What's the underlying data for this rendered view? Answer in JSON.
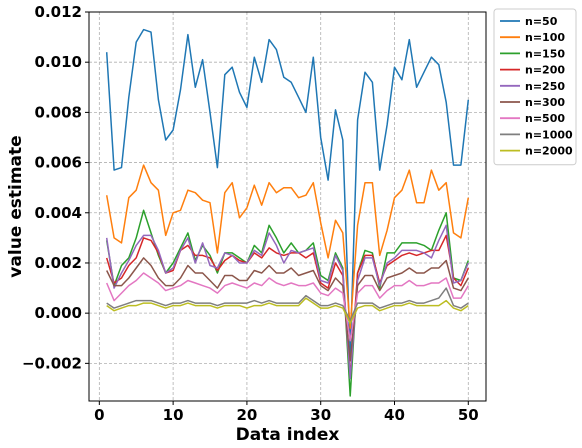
{
  "chart_data": {
    "type": "line",
    "xlabel": "Data index",
    "ylabel": "value estimate",
    "xlim": [
      -1.4,
      52.4
    ],
    "ylim": [
      -0.0035,
      0.012
    ],
    "xticks": [
      0,
      10,
      20,
      30,
      40,
      50
    ],
    "xtick_labels": [
      "0",
      "10",
      "20",
      "30",
      "40",
      "50"
    ],
    "yticks": [
      -0.002,
      0.0,
      0.002,
      0.004,
      0.006,
      0.008,
      0.01,
      0.012
    ],
    "ytick_labels": [
      "−0.002",
      "0.000",
      "0.002",
      "0.004",
      "0.006",
      "0.008",
      "0.010",
      "0.012"
    ],
    "grid": true,
    "legend_position": "outside-top-right",
    "x": [
      1,
      2,
      3,
      4,
      5,
      6,
      7,
      8,
      9,
      10,
      11,
      12,
      13,
      14,
      15,
      16,
      17,
      18,
      19,
      20,
      21,
      22,
      23,
      24,
      25,
      26,
      27,
      28,
      29,
      30,
      31,
      32,
      33,
      34,
      35,
      36,
      37,
      38,
      39,
      40,
      41,
      42,
      43,
      44,
      45,
      46,
      47,
      48,
      49,
      50
    ],
    "series": [
      {
        "name": "n=50",
        "color": "#1f77b4",
        "values": [
          0.0104,
          0.0057,
          0.0058,
          0.0086,
          0.0108,
          0.0113,
          0.0112,
          0.0085,
          0.0069,
          0.0073,
          0.0089,
          0.0111,
          0.009,
          0.0101,
          0.008,
          0.0058,
          0.0095,
          0.0098,
          0.0088,
          0.0082,
          0.0102,
          0.0092,
          0.0109,
          0.0105,
          0.0094,
          0.0092,
          0.0086,
          0.008,
          0.0102,
          0.007,
          0.0053,
          0.0081,
          0.0069,
          -0.0016,
          0.0077,
          0.0096,
          0.0092,
          0.0057,
          0.0075,
          0.0098,
          0.0093,
          0.0109,
          0.009,
          0.0096,
          0.0102,
          0.0099,
          0.0084,
          0.0059,
          0.0059,
          0.0085
        ]
      },
      {
        "name": "n=100",
        "color": "#ff7f0e",
        "values": [
          0.0047,
          0.003,
          0.0028,
          0.0046,
          0.0049,
          0.0059,
          0.0052,
          0.0049,
          0.0031,
          0.004,
          0.0041,
          0.0049,
          0.0048,
          0.0045,
          0.0044,
          0.0024,
          0.0048,
          0.0052,
          0.0038,
          0.0042,
          0.0051,
          0.0043,
          0.0052,
          0.0048,
          0.005,
          0.005,
          0.0046,
          0.0047,
          0.0052,
          0.0036,
          0.0022,
          0.0037,
          0.0032,
          -0.0006,
          0.0035,
          0.0052,
          0.0052,
          0.0023,
          0.0033,
          0.0046,
          0.0049,
          0.0057,
          0.0044,
          0.0044,
          0.0057,
          0.0049,
          0.0052,
          0.0032,
          0.003,
          0.0046
        ]
      },
      {
        "name": "n=150",
        "color": "#2ca02c",
        "values": [
          0.0029,
          0.0011,
          0.0019,
          0.0022,
          0.003,
          0.0041,
          0.0032,
          0.0023,
          0.0016,
          0.002,
          0.0026,
          0.0032,
          0.0021,
          0.0027,
          0.0023,
          0.0016,
          0.0024,
          0.0024,
          0.0022,
          0.002,
          0.0027,
          0.0024,
          0.0035,
          0.003,
          0.0024,
          0.0028,
          0.0024,
          0.0025,
          0.0028,
          0.0015,
          0.0013,
          0.0024,
          0.0018,
          -0.0033,
          0.0016,
          0.0025,
          0.0024,
          0.001,
          0.0024,
          0.0024,
          0.0028,
          0.0028,
          0.0028,
          0.0027,
          0.0025,
          0.0033,
          0.004,
          0.0014,
          0.0013,
          0.0021
        ]
      },
      {
        "name": "n=200",
        "color": "#d62728",
        "values": [
          0.0022,
          0.0012,
          0.0014,
          0.0019,
          0.0022,
          0.003,
          0.0029,
          0.0024,
          0.0016,
          0.0017,
          0.0025,
          0.0027,
          0.0023,
          0.0023,
          0.0022,
          0.0017,
          0.0021,
          0.0023,
          0.0021,
          0.002,
          0.0024,
          0.0022,
          0.0026,
          0.0024,
          0.0023,
          0.0024,
          0.0024,
          0.0022,
          0.0024,
          0.0012,
          0.001,
          0.002,
          0.0015,
          -0.0025,
          0.0016,
          0.0023,
          0.0023,
          0.0012,
          0.0019,
          0.0021,
          0.0023,
          0.0024,
          0.0023,
          0.0024,
          0.0025,
          0.0025,
          0.0031,
          0.0014,
          0.0011,
          0.0018
        ]
      },
      {
        "name": "n=250",
        "color": "#9467bd",
        "values": [
          0.003,
          0.001,
          0.0016,
          0.0021,
          0.0027,
          0.0031,
          0.0031,
          0.0025,
          0.0016,
          0.0018,
          0.0025,
          0.003,
          0.002,
          0.0028,
          0.0019,
          0.0018,
          0.0024,
          0.0023,
          0.002,
          0.002,
          0.0025,
          0.0023,
          0.0032,
          0.0027,
          0.002,
          0.0025,
          0.0024,
          0.0025,
          0.0026,
          0.0013,
          0.0012,
          0.0023,
          0.0017,
          -0.0026,
          0.0013,
          0.0022,
          0.0022,
          0.0011,
          0.002,
          0.0022,
          0.0025,
          0.0025,
          0.0025,
          0.0024,
          0.0022,
          0.0029,
          0.0035,
          0.0012,
          0.0013,
          0.002
        ]
      },
      {
        "name": "n=300",
        "color": "#8c564b",
        "values": [
          0.0017,
          0.0011,
          0.0011,
          0.0014,
          0.0018,
          0.0022,
          0.0019,
          0.0014,
          0.0011,
          0.0011,
          0.0014,
          0.0019,
          0.0016,
          0.0016,
          0.0013,
          0.001,
          0.0015,
          0.0015,
          0.0013,
          0.0013,
          0.0017,
          0.0016,
          0.0019,
          0.0016,
          0.0016,
          0.0018,
          0.0015,
          0.0016,
          0.0017,
          0.0011,
          0.0009,
          0.0014,
          0.0011,
          -0.0019,
          0.0011,
          0.0015,
          0.0015,
          0.0009,
          0.0014,
          0.0015,
          0.0016,
          0.0018,
          0.0016,
          0.0016,
          0.0018,
          0.0018,
          0.0021,
          0.001,
          0.0009,
          0.0014
        ]
      },
      {
        "name": "n=500",
        "color": "#e377c2",
        "values": [
          0.0012,
          0.0005,
          0.0008,
          0.0011,
          0.0013,
          0.0016,
          0.0014,
          0.0012,
          0.0009,
          0.001,
          0.0011,
          0.0013,
          0.0012,
          0.0011,
          0.001,
          0.0008,
          0.0011,
          0.0012,
          0.0011,
          0.001,
          0.0012,
          0.0011,
          0.0014,
          0.0012,
          0.0011,
          0.0012,
          0.0011,
          0.0011,
          0.0012,
          0.0008,
          0.0007,
          0.001,
          0.0008,
          -0.0011,
          0.0008,
          0.0011,
          0.0011,
          0.0006,
          0.0009,
          0.0011,
          0.0011,
          0.0013,
          0.0011,
          0.0011,
          0.0012,
          0.0012,
          0.0014,
          0.0006,
          0.0006,
          0.0011
        ]
      },
      {
        "name": "n=1000",
        "color": "#7f7f7f",
        "values": [
          0.0004,
          0.0002,
          0.0003,
          0.0004,
          0.0005,
          0.0005,
          0.0005,
          0.0004,
          0.0003,
          0.0004,
          0.0004,
          0.0005,
          0.0004,
          0.0004,
          0.0004,
          0.0003,
          0.0004,
          0.0004,
          0.0004,
          0.0004,
          0.0005,
          0.0004,
          0.0005,
          0.0004,
          0.0004,
          0.0004,
          0.0004,
          0.0007,
          0.0005,
          0.0003,
          0.0003,
          0.0004,
          0.0003,
          -0.0003,
          0.0004,
          0.0004,
          0.0004,
          0.0002,
          0.0003,
          0.0004,
          0.0004,
          0.0005,
          0.0004,
          0.0004,
          0.0005,
          0.0006,
          0.001,
          0.0003,
          0.0002,
          0.0004
        ]
      },
      {
        "name": "n=2000",
        "color": "#bcbd22",
        "values": [
          0.0003,
          0.0001,
          0.0002,
          0.0003,
          0.0003,
          0.0004,
          0.0004,
          0.0003,
          0.0002,
          0.0003,
          0.0003,
          0.0004,
          0.0003,
          0.0003,
          0.0003,
          0.0002,
          0.0003,
          0.0003,
          0.0003,
          0.0002,
          0.0003,
          0.0003,
          0.0004,
          0.0003,
          0.0003,
          0.0003,
          0.0003,
          0.0006,
          0.0004,
          0.0002,
          0.0002,
          0.0003,
          0.0002,
          -0.0004,
          0.0002,
          0.0003,
          0.0003,
          0.0001,
          0.0002,
          0.0003,
          0.0003,
          0.0004,
          0.0003,
          0.0003,
          0.0003,
          0.0003,
          0.0005,
          0.0002,
          0.0001,
          0.0003
        ]
      }
    ]
  }
}
